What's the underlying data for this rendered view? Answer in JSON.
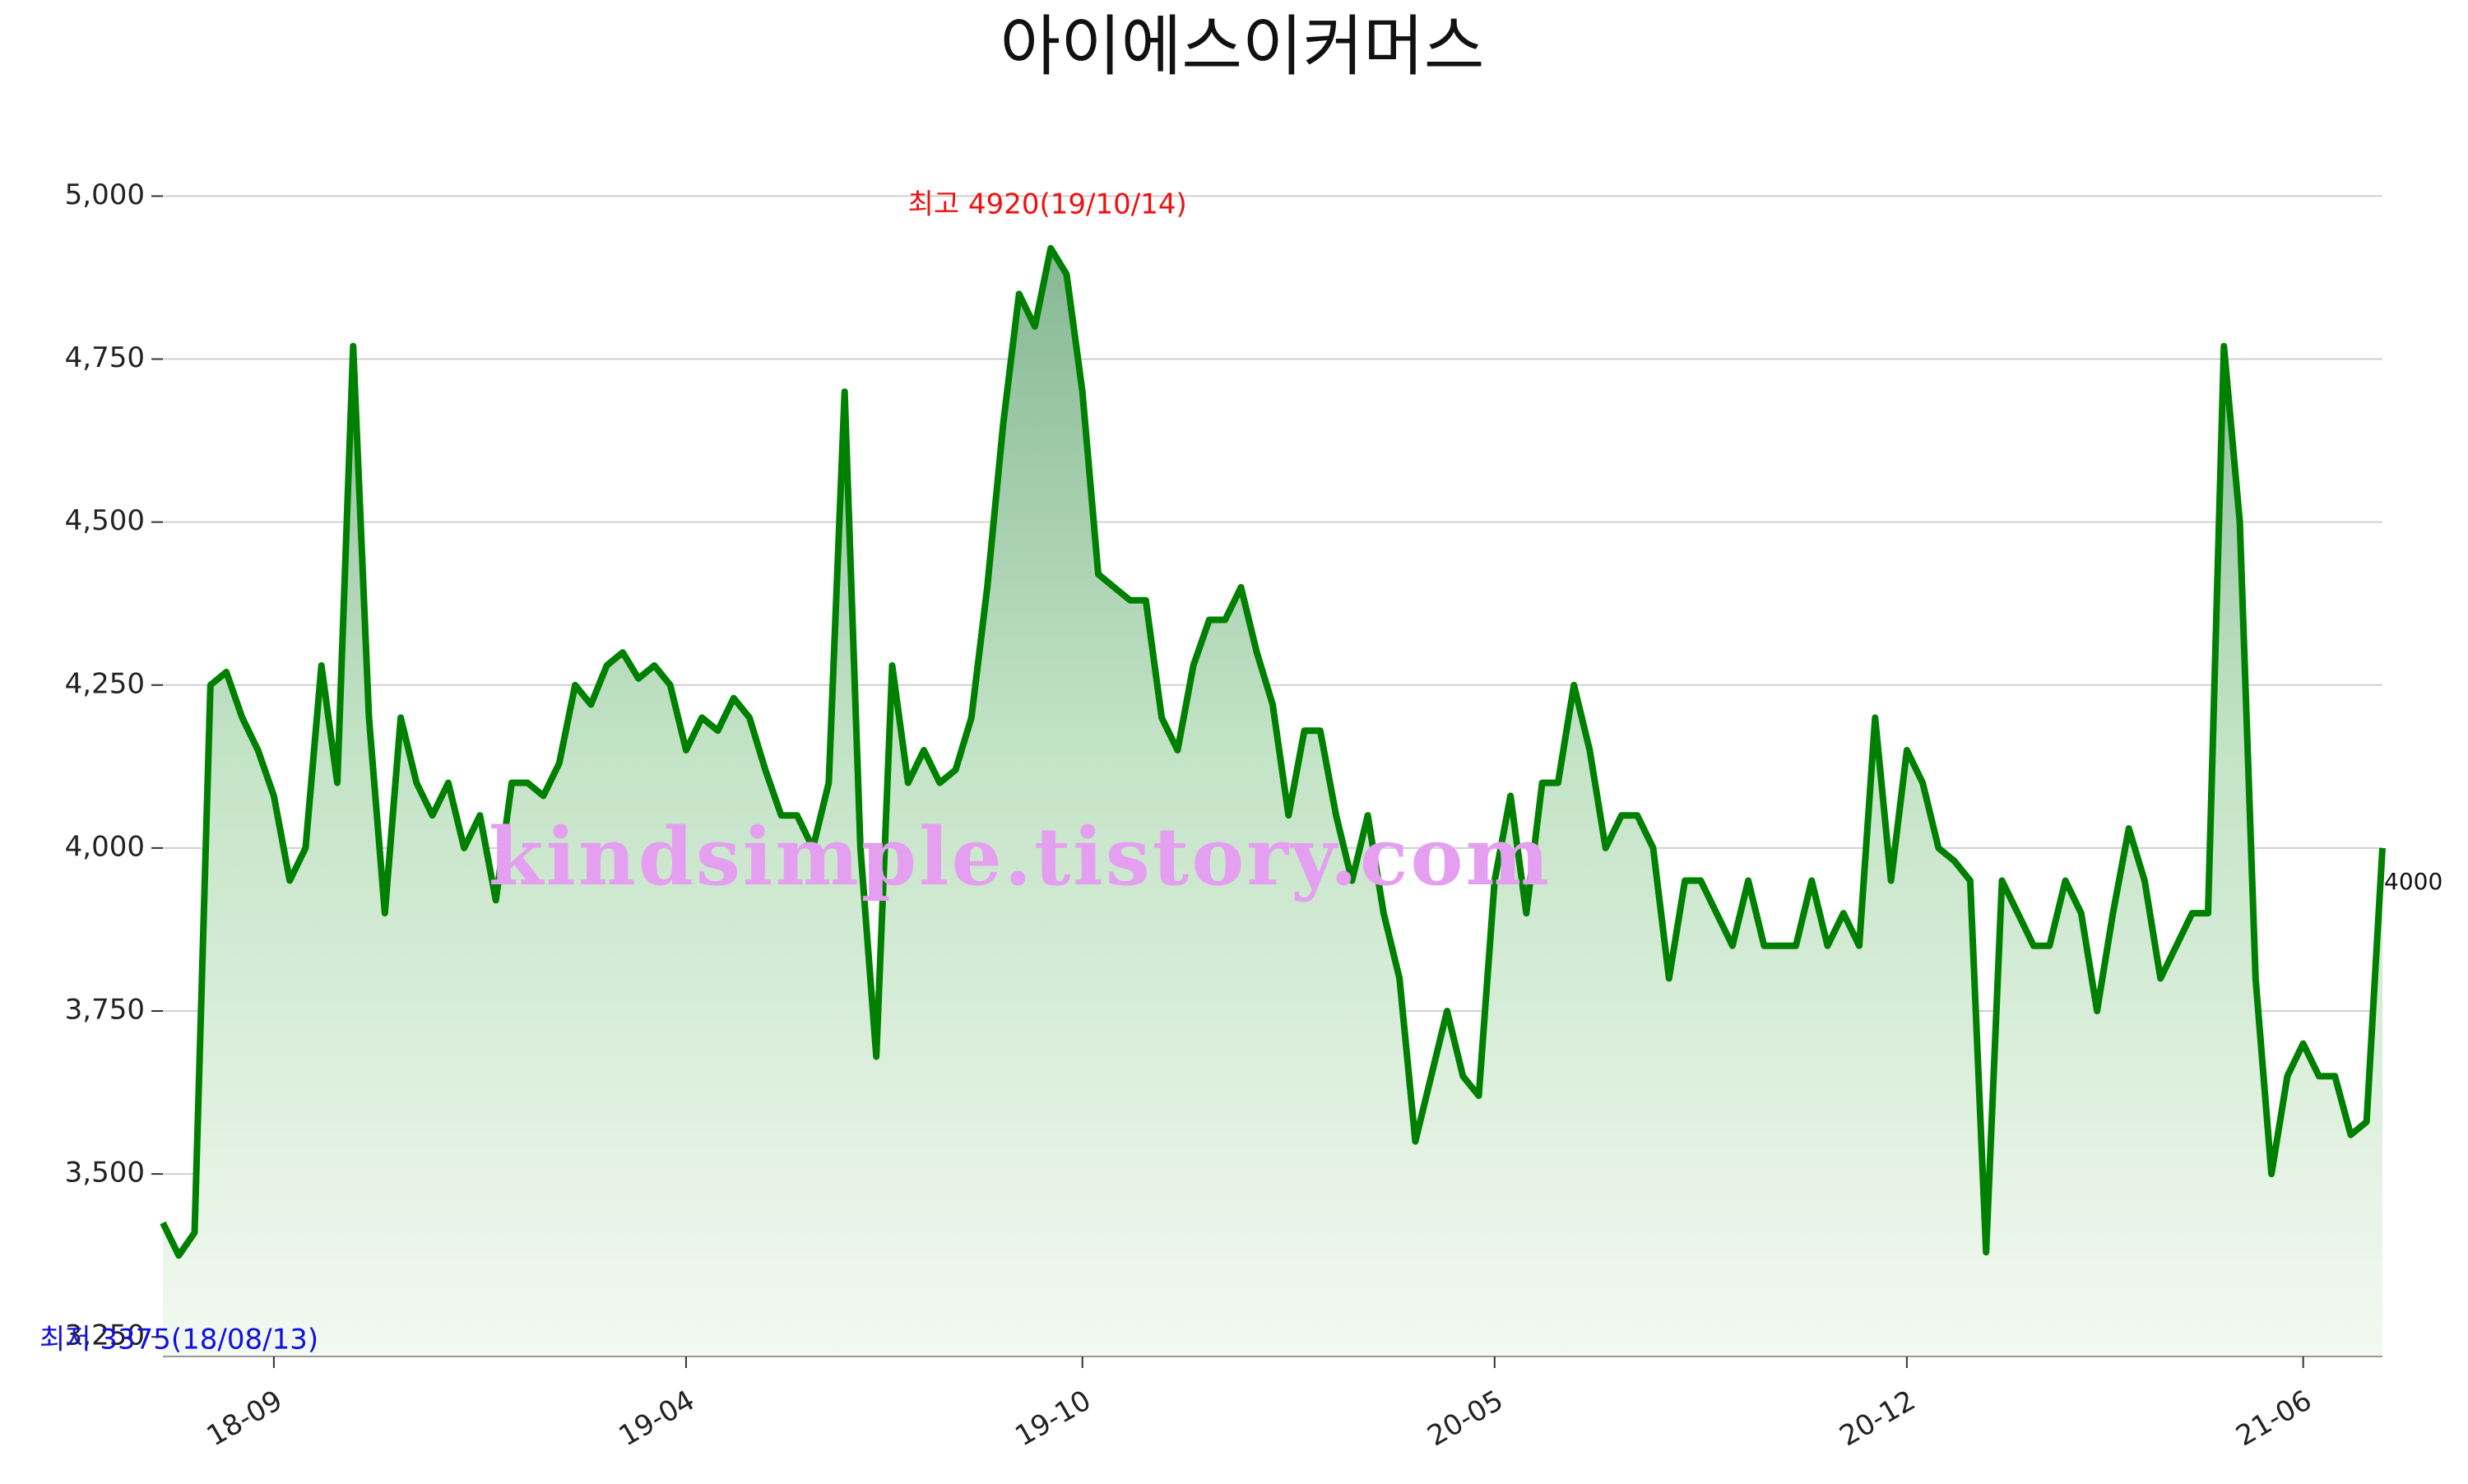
{
  "chart_data": {
    "type": "line",
    "title": "아이에스이커머스",
    "watermark": "kindsimple.tistory.com",
    "annotations": [
      "최고 4920(19/10/14)",
      "최저 3375(18/08/13)"
    ],
    "color": "#008000",
    "grid": true,
    "ylim": [
      3220,
      5080
    ],
    "yticks": [
      {
        "value": 3250,
        "label": "3,250"
      },
      {
        "value": 3500,
        "label": "3,500"
      },
      {
        "value": 3750,
        "label": "3,750"
      },
      {
        "value": 4000,
        "label": "4,000"
      },
      {
        "value": 4250,
        "label": "4,250"
      },
      {
        "value": 4500,
        "label": "4,500"
      },
      {
        "value": 4750,
        "label": "4,750"
      },
      {
        "value": 5000,
        "label": "5,000"
      }
    ],
    "categories": [
      null,
      null,
      null,
      null,
      null,
      null,
      null,
      "18-09",
      null,
      null,
      null,
      null,
      null,
      null,
      null,
      null,
      null,
      null,
      null,
      null,
      null,
      null,
      null,
      null,
      null,
      null,
      null,
      null,
      null,
      null,
      null,
      null,
      null,
      "19-04",
      null,
      null,
      null,
      null,
      null,
      null,
      null,
      null,
      null,
      null,
      null,
      null,
      null,
      null,
      null,
      null,
      null,
      null,
      null,
      null,
      null,
      null,
      null,
      null,
      "19-10",
      null,
      null,
      null,
      null,
      null,
      null,
      null,
      null,
      null,
      null,
      null,
      null,
      null,
      null,
      null,
      null,
      null,
      null,
      null,
      null,
      null,
      null,
      null,
      null,
      null,
      "20-05",
      null,
      null,
      null,
      null,
      null,
      null,
      null,
      null,
      null,
      null,
      null,
      null,
      null,
      null,
      null,
      null,
      null,
      null,
      null,
      null,
      null,
      null,
      null,
      null,
      null,
      "20-12",
      null,
      null,
      null,
      null,
      null,
      null,
      null,
      null,
      null,
      null,
      null,
      null,
      null,
      null,
      null,
      null,
      null,
      null,
      null,
      null,
      null,
      null,
      null,
      null,
      "21-06",
      null,
      null,
      null,
      null,
      null
    ],
    "values": [
      3425,
      3375,
      3410,
      4250,
      4270,
      4200,
      4150,
      4080,
      3950,
      4000,
      4280,
      4100,
      4770,
      4200,
      3900,
      4200,
      4100,
      4050,
      4100,
      4000,
      4050,
      3920,
      4100,
      4100,
      4080,
      4130,
      4250,
      4220,
      4280,
      4300,
      4260,
      4280,
      4250,
      4150,
      4200,
      4180,
      4230,
      4200,
      4120,
      4050,
      4050,
      4000,
      4100,
      4700,
      4000,
      3680,
      4280,
      4100,
      4150,
      4100,
      4120,
      4200,
      4400,
      4650,
      4850,
      4800,
      4920,
      4880,
      4700,
      4420,
      4400,
      4380,
      4380,
      4200,
      4150,
      4280,
      4350,
      4350,
      4400,
      4300,
      4220,
      4050,
      4180,
      4180,
      4050,
      3950,
      4050,
      3900,
      3800,
      3550,
      3650,
      3750,
      3650,
      3620,
      3950,
      4080,
      3900,
      4100,
      4100,
      4250,
      4150,
      4000,
      4050,
      4050,
      4000,
      3800,
      3950,
      3950,
      3900,
      3850,
      3950,
      3850,
      3850,
      3850,
      3950,
      3850,
      3900,
      3850,
      4200,
      3950,
      4150,
      4100,
      4000,
      3980,
      3950,
      3380,
      3950,
      3900,
      3850,
      3850,
      3950,
      3900,
      3750,
      3900,
      4030,
      3950,
      3800,
      3850,
      3900,
      3900,
      4770,
      4500,
      3800,
      3500,
      3650,
      3700,
      3650,
      3650,
      3560,
      3580,
      4000
    ]
  }
}
